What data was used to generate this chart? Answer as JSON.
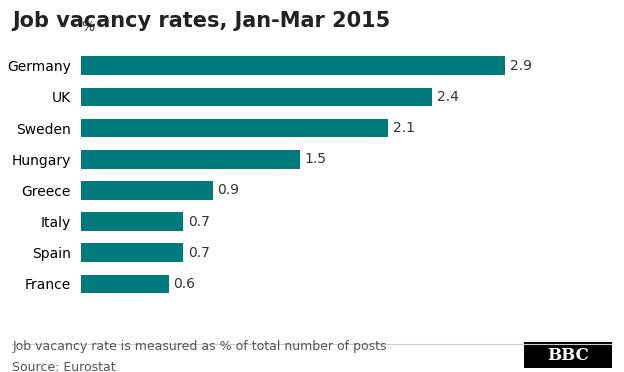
{
  "title": "Job vacancy rates, Jan-Mar 2015",
  "categories": [
    "France",
    "Spain",
    "Italy",
    "Greece",
    "Hungary",
    "Sweden",
    "UK",
    "Germany"
  ],
  "values": [
    0.6,
    0.7,
    0.7,
    0.9,
    1.5,
    2.1,
    2.4,
    2.9
  ],
  "bar_color": "#007a7a",
  "ylabel_text": "%",
  "footnote": "Job vacancy rate is measured as % of total number of posts",
  "source": "Source: Eurostat",
  "bbc_label": "BBC",
  "xlim": [
    0,
    3.2
  ],
  "title_fontsize": 15,
  "axis_fontsize": 10,
  "label_fontsize": 10,
  "footnote_fontsize": 9,
  "source_fontsize": 9,
  "background_color": "#ffffff"
}
